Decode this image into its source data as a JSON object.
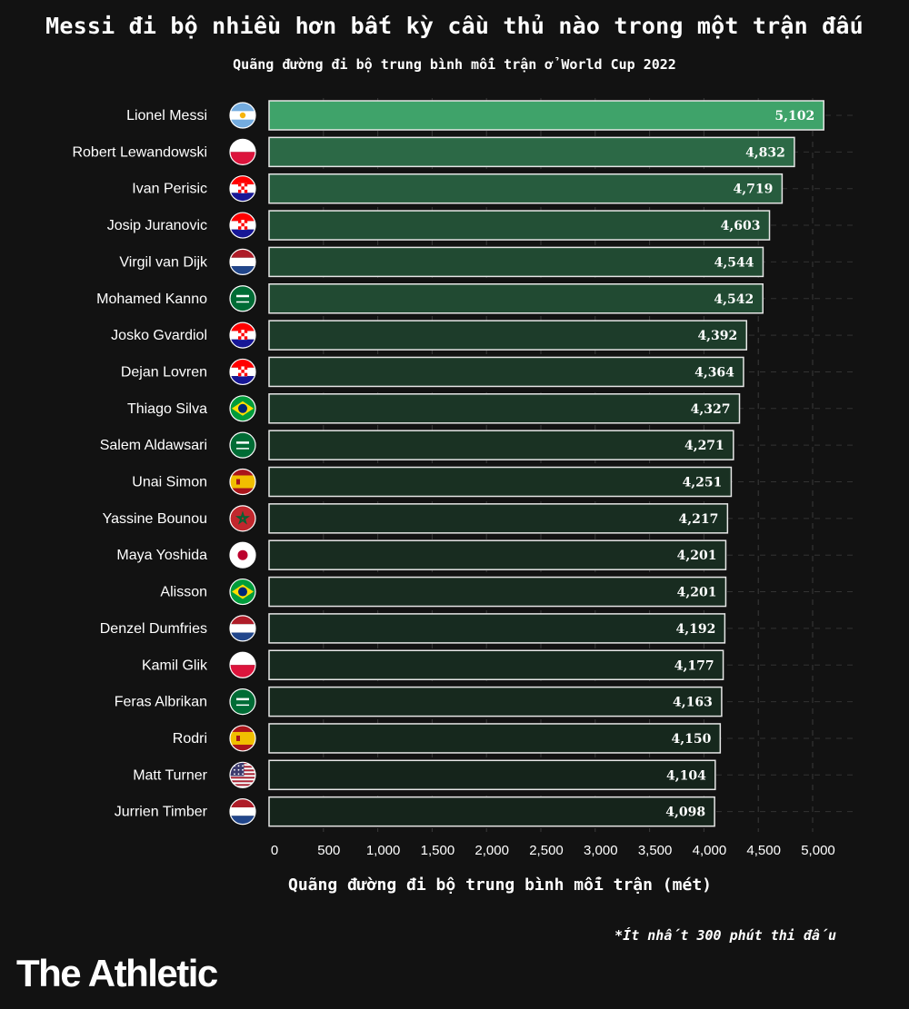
{
  "header": {
    "title": "Messi đi bộ nhiều hơn bất kỳ cầu thủ nào trong một trận đấu",
    "subtitle": "Quãng đường đi bộ trung bình mỗi trận ở World Cup 2022"
  },
  "footer": {
    "footnote": "*Ít nhất 300 phút thi đấu",
    "logo": "The Athletic"
  },
  "chart_data": {
    "type": "bar",
    "orientation": "horizontal",
    "title": "Messi đi bộ nhiều hơn bất kỳ cầu thủ nào trong một trận đấu",
    "subtitle": "Quãng đường đi bộ trung bình mỗi trận ở World Cup 2022",
    "xlabel": "Quãng đường đi bộ trung bình mỗi trận (mét)",
    "ylabel": "",
    "xlim": [
      0,
      5000
    ],
    "xticks": [
      0,
      500,
      1000,
      1500,
      2000,
      2500,
      3000,
      3500,
      4000,
      4500,
      5000
    ],
    "xtick_labels": [
      "0",
      "500",
      "1,000",
      "1,500",
      "2,000",
      "2,500",
      "3,000",
      "3,500",
      "4,000",
      "4,500",
      "5,000"
    ],
    "grid": "vertical dashed",
    "categories": [
      "Lionel Messi",
      "Robert Lewandowski",
      "Ivan Perisic",
      "Josip Juranovic",
      "Virgil van Dijk",
      "Mohamed Kanno",
      "Josko Gvardiol",
      "Dejan Lovren",
      "Thiago Silva",
      "Salem Aldawsari",
      "Unai Simon",
      "Yassine Bounou",
      "Maya Yoshida",
      "Alisson",
      "Denzel Dumfries",
      "Kamil Glik",
      "Feras Albrikan",
      "Rodri",
      "Matt Turner",
      "Jurrien Timber"
    ],
    "values": [
      5102,
      4832,
      4719,
      4603,
      4544,
      4542,
      4392,
      4364,
      4327,
      4271,
      4251,
      4217,
      4201,
      4201,
      4192,
      4177,
      4163,
      4150,
      4104,
      4098
    ],
    "value_labels": [
      "5,102",
      "4,832",
      "4,719",
      "4,603",
      "4,544",
      "4,542",
      "4,392",
      "4,364",
      "4,327",
      "4,271",
      "4,251",
      "4,217",
      "4,201",
      "4,201",
      "4,192",
      "4,177",
      "4,163",
      "4,150",
      "4,104",
      "4,098"
    ],
    "flags": [
      "argentina",
      "poland",
      "croatia",
      "croatia",
      "netherlands",
      "saudi-arabia",
      "croatia",
      "croatia",
      "brazil",
      "saudi-arabia",
      "spain",
      "morocco",
      "japan",
      "brazil",
      "netherlands",
      "poland",
      "saudi-arabia",
      "spain",
      "usa",
      "netherlands"
    ],
    "colors": {
      "bar_high": "#3fa36a",
      "bar_low": "#15241b",
      "bar_border": "#e6e6e6",
      "background": "#121212",
      "text": "#ffffff"
    }
  }
}
